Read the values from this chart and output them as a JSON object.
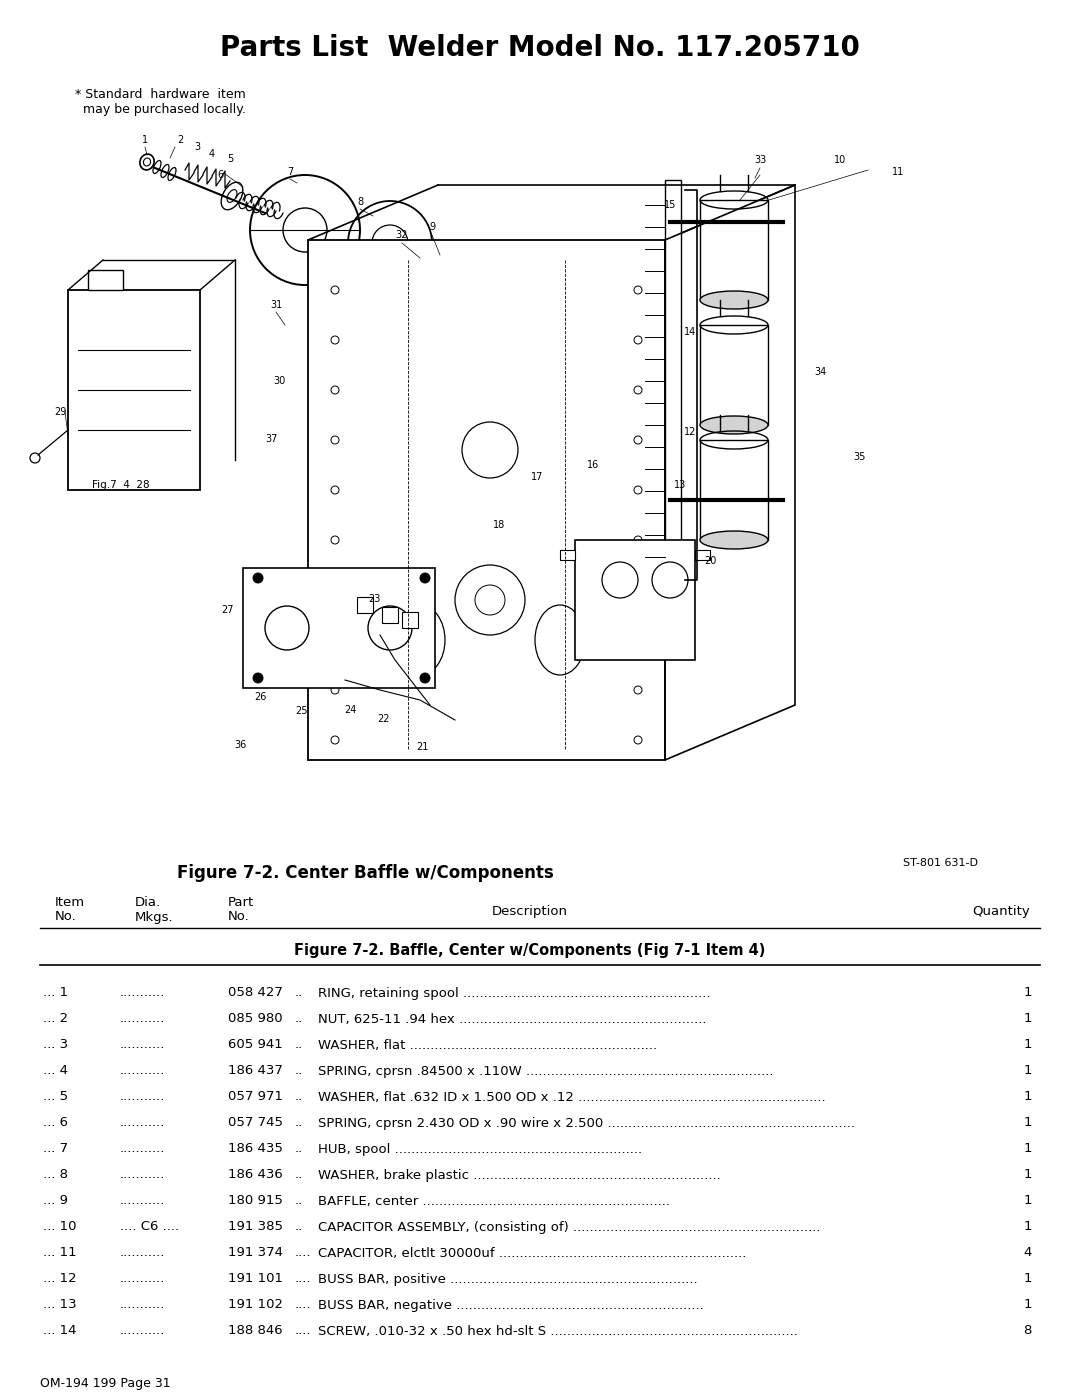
{
  "title": "Parts List  Welder Model No. 117.205710",
  "standard_hardware_note": "* Standard  hardware  item\n  may be purchased locally.",
  "figure_caption": "Figure 7-2. Center Baffle w/Components",
  "figure_id": "ST-801 631-D",
  "table_section_title": "Figure 7-2. Baffle, Center w/Components (Fig 7-1 Item 4)",
  "footer": "OM-194 199 Page 31",
  "bg_color": "#ffffff",
  "text_color": "#000000",
  "title_fontsize": 20,
  "body_fontsize": 9.5,
  "table_rows": [
    "... 1              058 427 .. RING, retaining spool ………………………………………… 1",
    "... 2              085 980 .. NUT, 625-11 .94 hex  ……………………………………… 1",
    "... 3              605 941 .. WASHER, flat ………………………………………………… 1",
    "... 4              186 437 .. SPRING, cprsn .84500 x .110W ……………………………… 1",
    "... 5              057 971 .. WASHER, flat .632 ID x 1.500 OD x .12 ……………………… 1",
    "... 6              057 745 .. SPRING, cprsn 2.430 OD x .90 wire x 2.500 ………………… 1",
    "... 7              186 435 .. HUB, spool …………………………………………………… 1",
    "... 8              186 436 .. WASHER, brake plastic ……………………………………… 1",
    "... 9              180 915 .. BAFFLE, center ……………………………………………… 1",
    "... 10 .... C6 .... 191 385 .. CAPACITOR ASSEMBLY, (consisting of) …………………… 1",
    "... 11              191 374 .... CAPACITOR, elctlt 30000uf ………………………………… 4",
    "... 12             191 101 .... BUSS BAR, positive ………………………………………… 1",
    "... 13             191 102 .... BUSS BAR, negative ……………………………………… 1",
    "... 14             188 846 .... SCREW, .010-32 x .50 hex hd-slt S ……………………… 8"
  ],
  "parts_structured": [
    {
      "item": "... 1",
      "dia": "...........",
      "part": "058 427",
      "sep": "..",
      "desc": "RING, retaining spool",
      "qty": "1"
    },
    {
      "item": "... 2",
      "dia": "...........",
      "part": "085 980",
      "sep": "..",
      "desc": "NUT, 625-11 .94 hex",
      "qty": "1"
    },
    {
      "item": "... 3",
      "dia": "...........",
      "part": "605 941",
      "sep": "..",
      "desc": "WASHER, flat",
      "qty": "1"
    },
    {
      "item": "... 4",
      "dia": "...........",
      "part": "186 437",
      "sep": "..",
      "desc": "SPRING, cprsn .84500 x .110W",
      "qty": "1"
    },
    {
      "item": "... 5",
      "dia": "...........",
      "part": "057 971",
      "sep": "..",
      "desc": "WASHER, flat .632 ID x 1.500 OD x .12",
      "qty": "1"
    },
    {
      "item": "... 6",
      "dia": "...........",
      "part": "057 745",
      "sep": "..",
      "desc": "SPRING, cprsn 2.430 OD x .90 wire x 2.500",
      "qty": "1"
    },
    {
      "item": "... 7",
      "dia": "...........",
      "part": "186 435",
      "sep": "..",
      "desc": "HUB, spool",
      "qty": "1"
    },
    {
      "item": "... 8",
      "dia": "...........",
      "part": "186 436",
      "sep": "..",
      "desc": "WASHER, brake plastic",
      "qty": "1"
    },
    {
      "item": "... 9",
      "dia": "...........",
      "part": "180 915",
      "sep": "..",
      "desc": "BAFFLE, center",
      "qty": "1"
    },
    {
      "item": "... 10",
      "dia": ".... C6 ....",
      "part": "191 385",
      "sep": "..",
      "desc": "CAPACITOR ASSEMBLY, (consisting of)",
      "qty": "1"
    },
    {
      "item": "... 11",
      "dia": "...........",
      "part": "191 374",
      "sep": "....",
      "desc": "CAPACITOR, elctlt 30000uf",
      "qty": "4"
    },
    {
      "item": "... 12",
      "dia": "...........",
      "part": "191 101",
      "sep": "....",
      "desc": "BUSS BAR, positive",
      "qty": "1"
    },
    {
      "item": "... 13",
      "dia": "...........",
      "part": "191 102",
      "sep": "....",
      "desc": "BUSS BAR, negative",
      "qty": "1"
    },
    {
      "item": "... 14",
      "dia": "...........",
      "part": "188 846",
      "sep": "....",
      "desc": "SCREW, .010-32 x .50 hex hd-slt S",
      "qty": "8"
    }
  ]
}
